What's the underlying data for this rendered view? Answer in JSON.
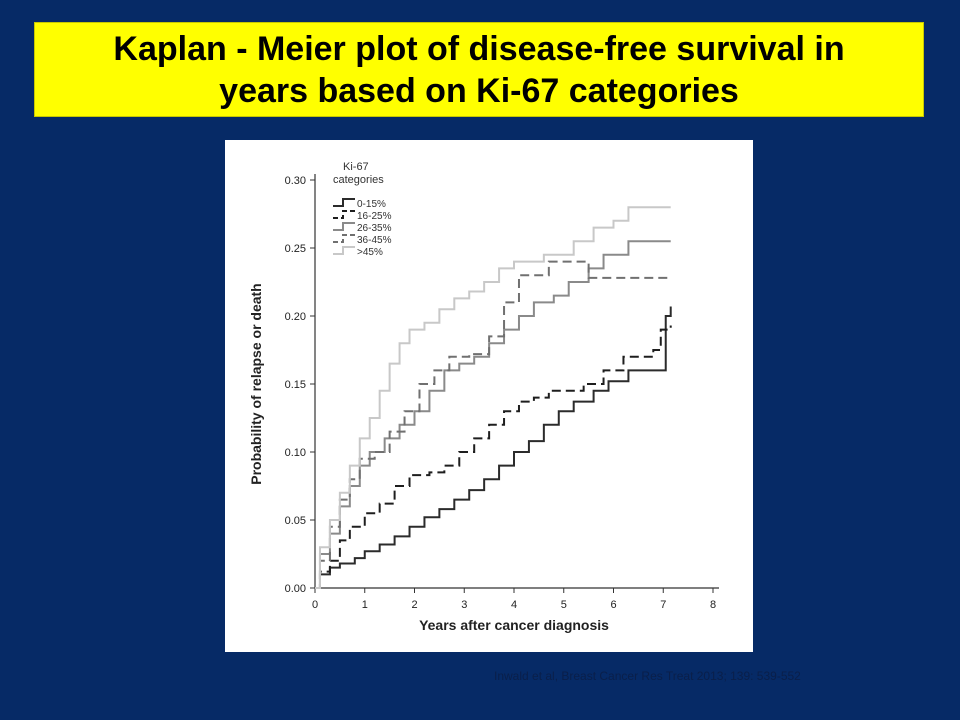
{
  "slide": {
    "title_line1": "Kaplan - Meier plot of disease-free survival in",
    "title_line2": "years based on Ki-67 categories",
    "citation": "Inwald et al, Breast Cancer Res Treat 2013; 139: 539-552",
    "colors": {
      "background": "#062a66",
      "title_box": "#ffff00",
      "panel": "#ffffff"
    }
  },
  "chart_data": {
    "type": "line",
    "step": true,
    "xlabel": "Years after cancer diagnosis",
    "ylabel": "Probability of relapse or death",
    "xlim": [
      0,
      8
    ],
    "ylim": [
      0,
      0.3
    ],
    "x_ticks": [
      "0",
      "1",
      "2",
      "3",
      "4",
      "5",
      "6",
      "7",
      "8"
    ],
    "y_ticks": [
      "0.00",
      "0.05",
      "0.10",
      "0.15",
      "0.20",
      "0.25",
      "0.30"
    ],
    "grid": false,
    "legend": {
      "title_line1": "Ki-67",
      "title_line2": "categories",
      "position": "top-left"
    },
    "series": [
      {
        "name": "0-15%",
        "color": "#2b2b2b",
        "dash": "solid",
        "width": 2,
        "points": [
          [
            0,
            0
          ],
          [
            0.1,
            0.01
          ],
          [
            0.3,
            0.015
          ],
          [
            0.5,
            0.018
          ],
          [
            0.8,
            0.022
          ],
          [
            1,
            0.027
          ],
          [
            1.3,
            0.032
          ],
          [
            1.6,
            0.038
          ],
          [
            1.9,
            0.045
          ],
          [
            2.2,
            0.052
          ],
          [
            2.5,
            0.058
          ],
          [
            2.8,
            0.065
          ],
          [
            3.1,
            0.072
          ],
          [
            3.4,
            0.08
          ],
          [
            3.7,
            0.09
          ],
          [
            4,
            0.1
          ],
          [
            4.3,
            0.108
          ],
          [
            4.6,
            0.12
          ],
          [
            4.9,
            0.13
          ],
          [
            5.2,
            0.137
          ],
          [
            5.6,
            0.145
          ],
          [
            5.9,
            0.152
          ],
          [
            6.3,
            0.16
          ],
          [
            7,
            0.16
          ],
          [
            7.05,
            0.2
          ],
          [
            7.15,
            0.207
          ]
        ]
      },
      {
        "name": "16-25%",
        "color": "#1e1e1e",
        "dash": "dashed",
        "width": 2,
        "points": [
          [
            0,
            0
          ],
          [
            0.1,
            0.012
          ],
          [
            0.3,
            0.02
          ],
          [
            0.5,
            0.035
          ],
          [
            0.7,
            0.045
          ],
          [
            1,
            0.055
          ],
          [
            1.3,
            0.062
          ],
          [
            1.6,
            0.075
          ],
          [
            1.9,
            0.083
          ],
          [
            2.3,
            0.085
          ],
          [
            2.6,
            0.09
          ],
          [
            2.9,
            0.1
          ],
          [
            3.2,
            0.11
          ],
          [
            3.5,
            0.12
          ],
          [
            3.8,
            0.13
          ],
          [
            4.1,
            0.137
          ],
          [
            4.4,
            0.14
          ],
          [
            4.7,
            0.145
          ],
          [
            5.4,
            0.15
          ],
          [
            5.8,
            0.16
          ],
          [
            6.2,
            0.17
          ],
          [
            6.8,
            0.175
          ],
          [
            6.95,
            0.19
          ],
          [
            7.15,
            0.193
          ]
        ]
      },
      {
        "name": "26-35%",
        "color": "#8a8a8a",
        "dash": "solid",
        "width": 2,
        "points": [
          [
            0,
            0
          ],
          [
            0.1,
            0.025
          ],
          [
            0.3,
            0.04
          ],
          [
            0.5,
            0.06
          ],
          [
            0.7,
            0.075
          ],
          [
            0.9,
            0.09
          ],
          [
            1.1,
            0.1
          ],
          [
            1.4,
            0.11
          ],
          [
            1.7,
            0.12
          ],
          [
            2,
            0.13
          ],
          [
            2.3,
            0.145
          ],
          [
            2.6,
            0.16
          ],
          [
            2.9,
            0.165
          ],
          [
            3.2,
            0.17
          ],
          [
            3.5,
            0.18
          ],
          [
            3.8,
            0.19
          ],
          [
            4.1,
            0.2
          ],
          [
            4.4,
            0.21
          ],
          [
            4.8,
            0.215
          ],
          [
            5.1,
            0.225
          ],
          [
            5.5,
            0.235
          ],
          [
            5.8,
            0.245
          ],
          [
            6.3,
            0.255
          ],
          [
            7.15,
            0.255
          ]
        ]
      },
      {
        "name": "36-45%",
        "color": "#707070",
        "dash": "dashed",
        "width": 2,
        "points": [
          [
            0,
            0
          ],
          [
            0.1,
            0.02
          ],
          [
            0.3,
            0.045
          ],
          [
            0.5,
            0.065
          ],
          [
            0.7,
            0.08
          ],
          [
            0.9,
            0.095
          ],
          [
            1.2,
            0.1
          ],
          [
            1.5,
            0.115
          ],
          [
            1.8,
            0.13
          ],
          [
            2.1,
            0.15
          ],
          [
            2.4,
            0.16
          ],
          [
            2.7,
            0.17
          ],
          [
            3.1,
            0.172
          ],
          [
            3.5,
            0.185
          ],
          [
            3.8,
            0.21
          ],
          [
            4.1,
            0.23
          ],
          [
            4.6,
            0.23
          ],
          [
            4.7,
            0.24
          ],
          [
            5.2,
            0.24
          ],
          [
            5.5,
            0.228
          ],
          [
            7.15,
            0.228
          ]
        ]
      },
      {
        "name": ">45%",
        "color": "#c8c8c8",
        "dash": "solid",
        "width": 2,
        "points": [
          [
            0,
            0
          ],
          [
            0.1,
            0.03
          ],
          [
            0.3,
            0.05
          ],
          [
            0.5,
            0.07
          ],
          [
            0.7,
            0.09
          ],
          [
            0.9,
            0.11
          ],
          [
            1.1,
            0.125
          ],
          [
            1.3,
            0.145
          ],
          [
            1.5,
            0.165
          ],
          [
            1.7,
            0.18
          ],
          [
            1.9,
            0.19
          ],
          [
            2.2,
            0.195
          ],
          [
            2.5,
            0.205
          ],
          [
            2.8,
            0.213
          ],
          [
            3.1,
            0.218
          ],
          [
            3.4,
            0.225
          ],
          [
            3.7,
            0.235
          ],
          [
            4,
            0.24
          ],
          [
            4.6,
            0.245
          ],
          [
            5.2,
            0.255
          ],
          [
            5.6,
            0.265
          ],
          [
            6,
            0.27
          ],
          [
            6.3,
            0.28
          ],
          [
            7.15,
            0.28
          ]
        ]
      }
    ]
  }
}
